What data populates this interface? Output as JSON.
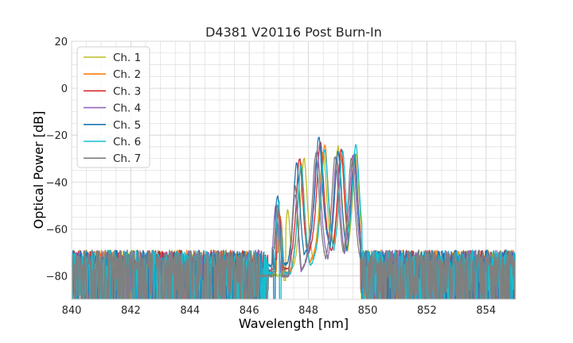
{
  "chart_data": {
    "type": "line",
    "title": "D4381 V20116 Post Burn-In",
    "xlabel": "Wavelength [nm]",
    "ylabel": "Optical Power [dB]",
    "xlim": [
      840,
      855
    ],
    "ylim": [
      -90,
      20
    ],
    "xticks": [
      840,
      842,
      844,
      846,
      848,
      850,
      852,
      854
    ],
    "yticks": [
      -80,
      -60,
      -40,
      -20,
      0,
      20
    ],
    "minor_x_step": 0.5,
    "minor_y_step": 5,
    "grid": true,
    "legend_position": "top-left",
    "noise_floor_db": [
      -90,
      -69
    ],
    "series": [
      {
        "name": "Ch. 1",
        "color": "#bcbd22",
        "peaks": [
          {
            "x": 847.3,
            "y": -52
          },
          {
            "x": 847.85,
            "y": -30
          },
          {
            "x": 848.5,
            "y": -27
          },
          {
            "x": 849.0,
            "y": -25
          },
          {
            "x": 849.6,
            "y": -28
          }
        ],
        "notch_min": -82,
        "notch_x": 847.2
      },
      {
        "name": "Ch. 2",
        "color": "#ff7f0e",
        "peaks": [
          {
            "x": 847.05,
            "y": -55
          },
          {
            "x": 847.75,
            "y": -32
          },
          {
            "x": 848.55,
            "y": -24
          },
          {
            "x": 849.1,
            "y": -28
          },
          {
            "x": 849.55,
            "y": -30
          }
        ],
        "notch_min": -70,
        "notch_x": 846.95
      },
      {
        "name": "Ch. 3",
        "color": "#d62728",
        "peaks": [
          {
            "x": 847.0,
            "y": -52
          },
          {
            "x": 847.7,
            "y": -30
          },
          {
            "x": 848.4,
            "y": -23
          },
          {
            "x": 849.1,
            "y": -26
          },
          {
            "x": 849.55,
            "y": -28
          }
        ],
        "notch_min": -73,
        "notch_x": 846.9
      },
      {
        "name": "Ch. 4",
        "color": "#9467bd",
        "peaks": [
          {
            "x": 846.9,
            "y": -50
          },
          {
            "x": 847.55,
            "y": -45
          },
          {
            "x": 848.3,
            "y": -27
          },
          {
            "x": 848.95,
            "y": -30
          },
          {
            "x": 849.5,
            "y": -29
          }
        ],
        "notch_min": -88,
        "notch_x": 846.35
      },
      {
        "name": "Ch. 5",
        "color": "#1f77b4",
        "peaks": [
          {
            "x": 846.95,
            "y": -46
          },
          {
            "x": 847.6,
            "y": -32
          },
          {
            "x": 848.35,
            "y": -21
          },
          {
            "x": 849.0,
            "y": -27
          },
          {
            "x": 849.55,
            "y": -30
          }
        ],
        "notch_min": -90,
        "notch_x": 846.85
      },
      {
        "name": "Ch. 6",
        "color": "#17becf",
        "peaks": [
          {
            "x": 847.0,
            "y": -48
          },
          {
            "x": 847.75,
            "y": -33
          },
          {
            "x": 848.55,
            "y": -26
          },
          {
            "x": 849.15,
            "y": -27
          },
          {
            "x": 849.6,
            "y": -24
          }
        ],
        "notch_min": -90,
        "notch_x": 847.05
      },
      {
        "name": "Ch. 7",
        "color": "#7f7f7f",
        "peaks": [
          {
            "x": 846.95,
            "y": -50
          },
          {
            "x": 847.55,
            "y": -42
          },
          {
            "x": 848.25,
            "y": -28
          },
          {
            "x": 848.9,
            "y": -29
          },
          {
            "x": 849.45,
            "y": -30
          }
        ],
        "notch_min": -68,
        "notch_x": 846.8
      }
    ]
  }
}
